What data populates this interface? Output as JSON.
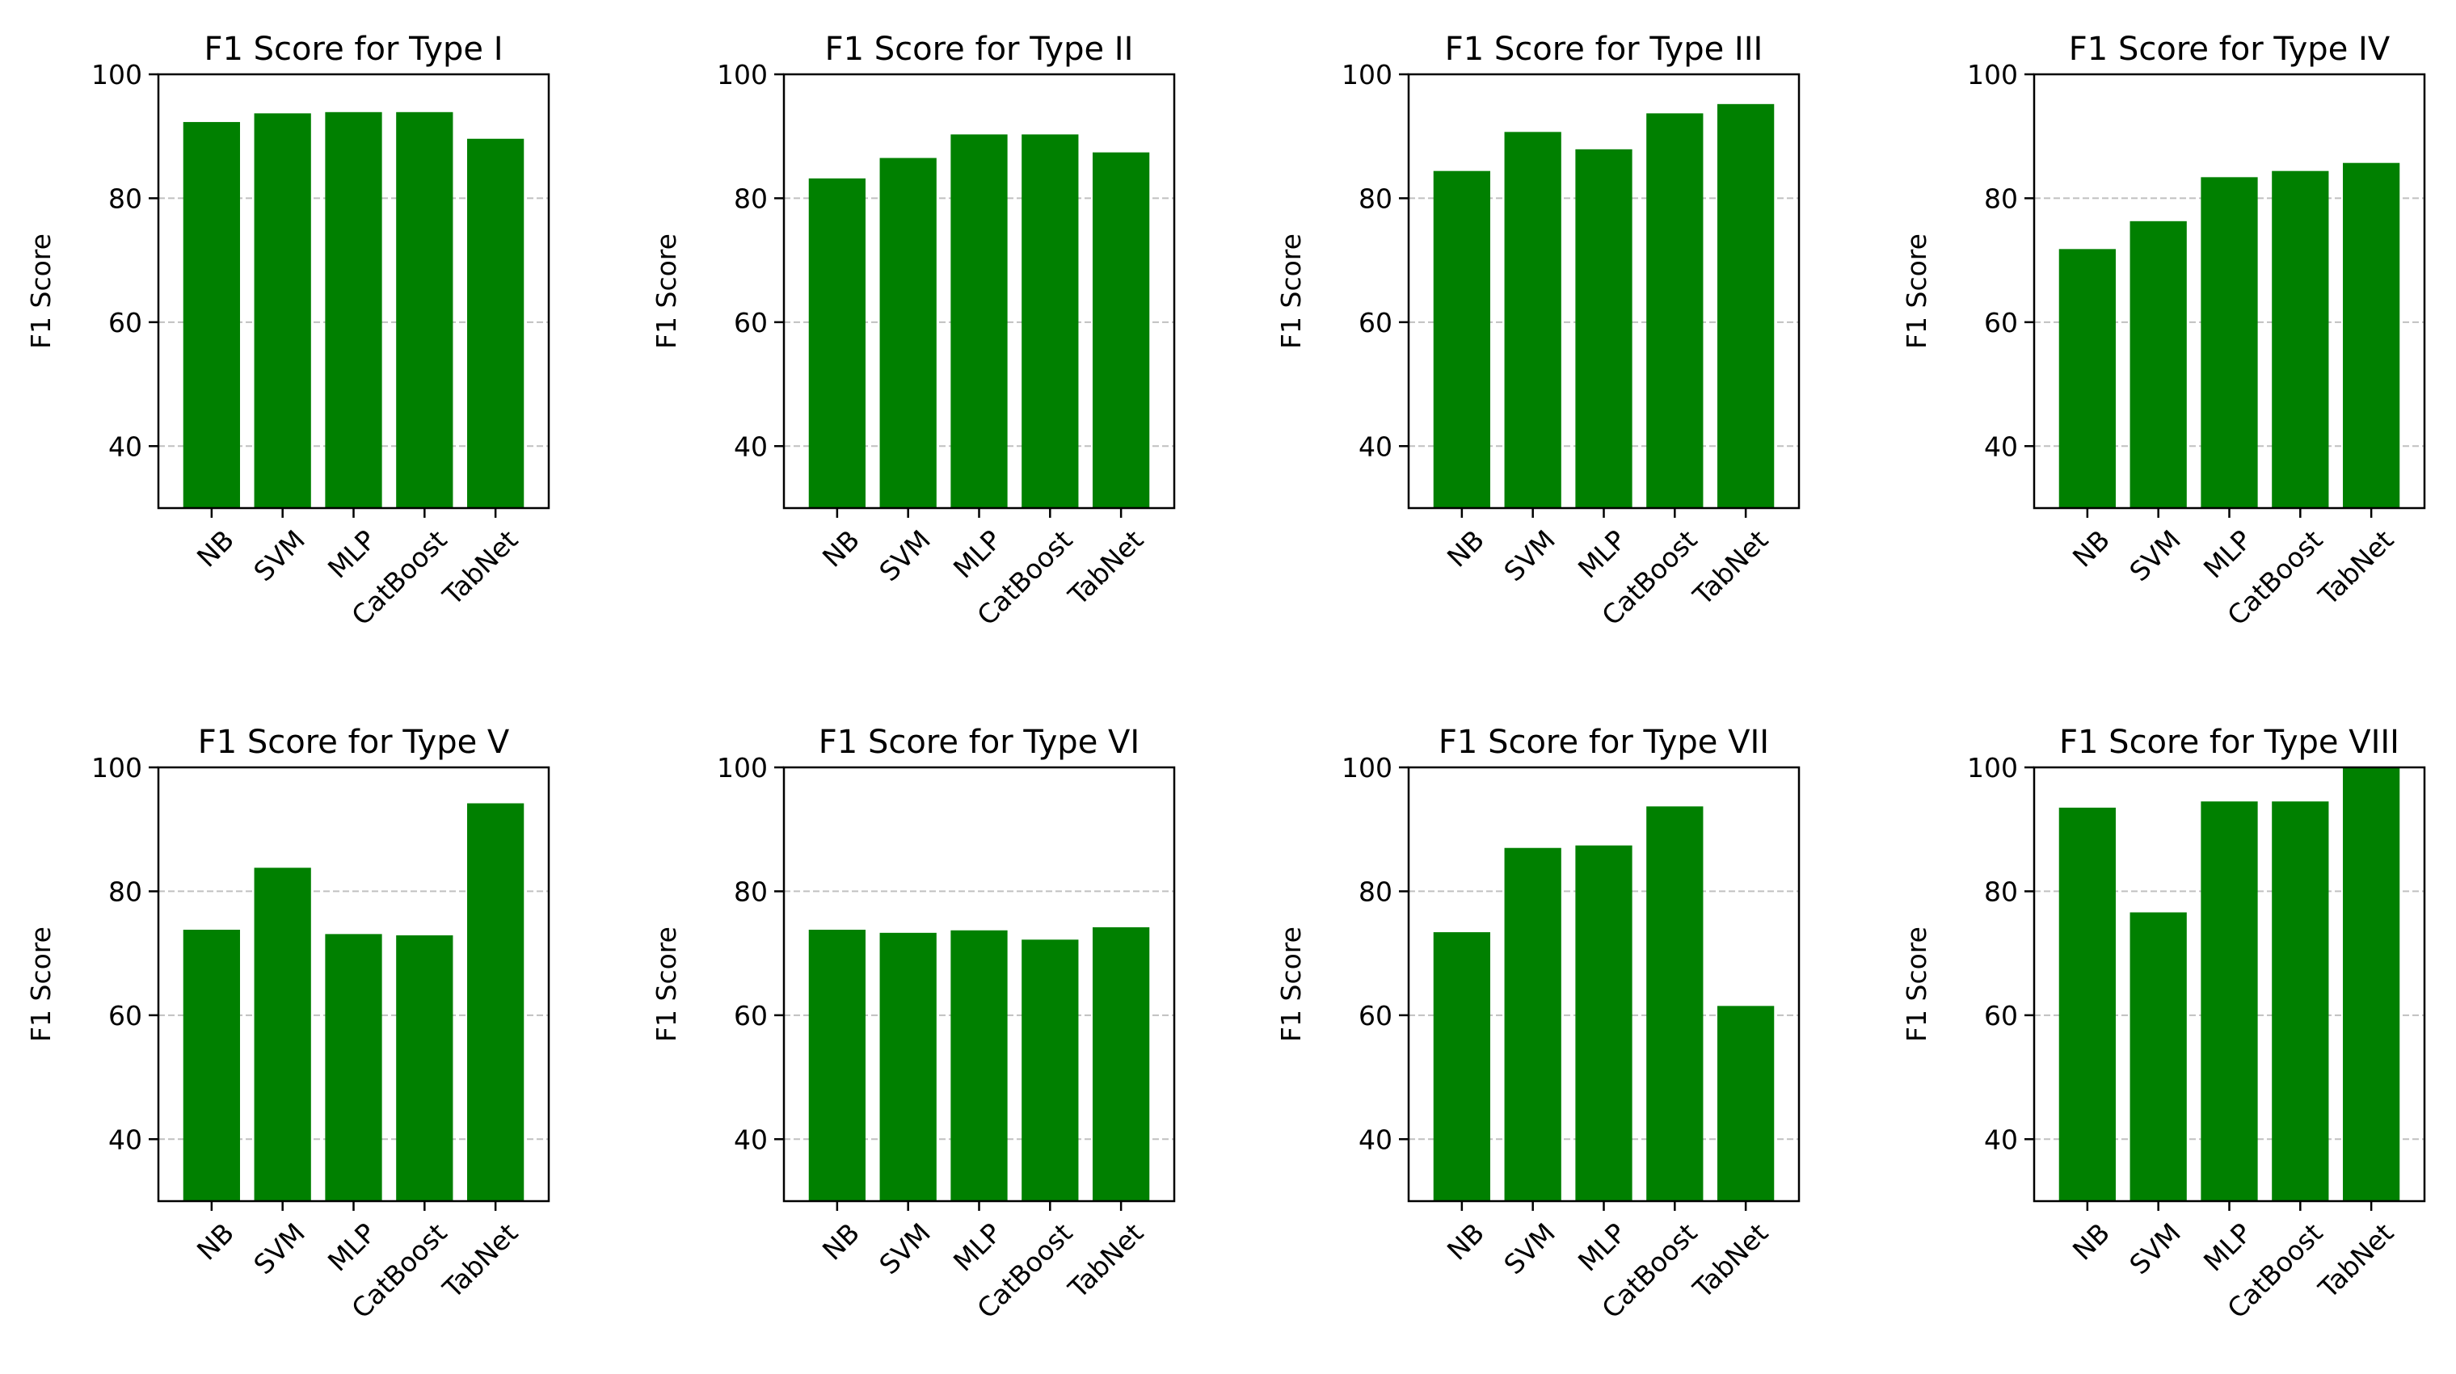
{
  "figure": {
    "background": "#ffffff",
    "bar_color": "#008000",
    "grid_color": "#c0c0c0"
  },
  "chart_data": [
    {
      "type": "bar",
      "title": "F1 Score for Type I",
      "ylabel": "F1 Score",
      "xlabel": "",
      "categories": [
        "NB",
        "SVM",
        "MLP",
        "CatBoost",
        "TabNet"
      ],
      "values": [
        92.3,
        93.7,
        93.9,
        93.9,
        89.6
      ],
      "ylim": [
        30,
        100
      ],
      "yticks": [
        40,
        60,
        80,
        100
      ],
      "grid": "y dashed"
    },
    {
      "type": "bar",
      "title": "F1 Score for Type II",
      "ylabel": "F1 Score",
      "xlabel": "",
      "categories": [
        "NB",
        "SVM",
        "MLP",
        "CatBoost",
        "TabNet"
      ],
      "values": [
        83.2,
        86.5,
        90.3,
        90.3,
        87.4
      ],
      "ylim": [
        30,
        100
      ],
      "yticks": [
        40,
        60,
        80,
        100
      ],
      "grid": "y dashed"
    },
    {
      "type": "bar",
      "title": "F1 Score for Type III",
      "ylabel": "F1 Score",
      "xlabel": "",
      "categories": [
        "NB",
        "SVM",
        "MLP",
        "CatBoost",
        "TabNet"
      ],
      "values": [
        84.4,
        90.7,
        87.9,
        93.7,
        95.2
      ],
      "ylim": [
        30,
        100
      ],
      "yticks": [
        40,
        60,
        80,
        100
      ],
      "grid": "y dashed"
    },
    {
      "type": "bar",
      "title": "F1 Score for Type IV",
      "ylabel": "F1 Score",
      "xlabel": "",
      "categories": [
        "NB",
        "SVM",
        "MLP",
        "CatBoost",
        "TabNet"
      ],
      "values": [
        71.8,
        76.3,
        83.4,
        84.4,
        85.7
      ],
      "ylim": [
        30,
        100
      ],
      "yticks": [
        40,
        60,
        80,
        100
      ],
      "grid": "y dashed"
    },
    {
      "type": "bar",
      "title": "F1 Score for Type V",
      "ylabel": "F1 Score",
      "xlabel": "",
      "categories": [
        "NB",
        "SVM",
        "MLP",
        "CatBoost",
        "TabNet"
      ],
      "values": [
        73.8,
        83.8,
        73.1,
        72.9,
        94.2
      ],
      "ylim": [
        30,
        100
      ],
      "yticks": [
        40,
        60,
        80,
        100
      ],
      "grid": "y dashed"
    },
    {
      "type": "bar",
      "title": "F1 Score for Type VI",
      "ylabel": "F1 Score",
      "xlabel": "",
      "categories": [
        "NB",
        "SVM",
        "MLP",
        "CatBoost",
        "TabNet"
      ],
      "values": [
        73.8,
        73.3,
        73.7,
        72.2,
        74.2
      ],
      "ylim": [
        30,
        100
      ],
      "yticks": [
        40,
        60,
        80,
        100
      ],
      "grid": "y dashed"
    },
    {
      "type": "bar",
      "title": "F1 Score for Type VII",
      "ylabel": "F1 Score",
      "xlabel": "",
      "categories": [
        "NB",
        "SVM",
        "MLP",
        "CatBoost",
        "TabNet"
      ],
      "values": [
        73.4,
        87.0,
        87.4,
        93.7,
        61.5
      ],
      "ylim": [
        30,
        100
      ],
      "yticks": [
        40,
        60,
        80,
        100
      ],
      "grid": "y dashed"
    },
    {
      "type": "bar",
      "title": "F1 Score for Type VIII",
      "ylabel": "F1 Score",
      "xlabel": "",
      "categories": [
        "NB",
        "SVM",
        "MLP",
        "CatBoost",
        "TabNet"
      ],
      "values": [
        93.5,
        76.6,
        94.5,
        94.5,
        100.0
      ],
      "ylim": [
        30,
        100
      ],
      "yticks": [
        40,
        60,
        80,
        100
      ],
      "grid": "y dashed"
    }
  ]
}
